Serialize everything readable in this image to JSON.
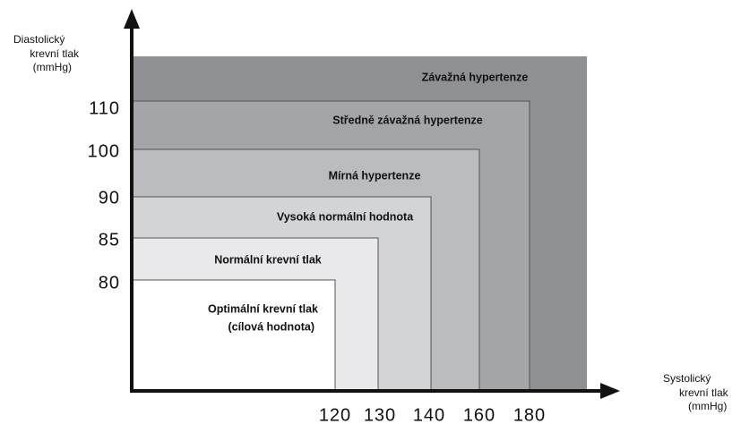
{
  "y_axis": {
    "label": [
      "Diastolický",
      "krevní tlak",
      "(mmHg)"
    ],
    "ticks": [
      110,
      100,
      90,
      85,
      80
    ]
  },
  "x_axis": {
    "label": [
      "Systolický",
      "krevní tlak",
      "(mmHg)"
    ],
    "ticks": [
      120,
      130,
      140,
      160,
      180
    ]
  },
  "regions": [
    {
      "label": [
        "Závažná hypertenze"
      ]
    },
    {
      "label": [
        "Středně závažná hypertenze"
      ]
    },
    {
      "label": [
        "Mírná hypertenze"
      ]
    },
    {
      "label": [
        "Vysoká normální hodnota"
      ]
    },
    {
      "label": [
        "Normální krevní tlak"
      ]
    },
    {
      "label": [
        "Optimální krevní tlak",
        "(cílová hodnota)"
      ]
    }
  ]
}
